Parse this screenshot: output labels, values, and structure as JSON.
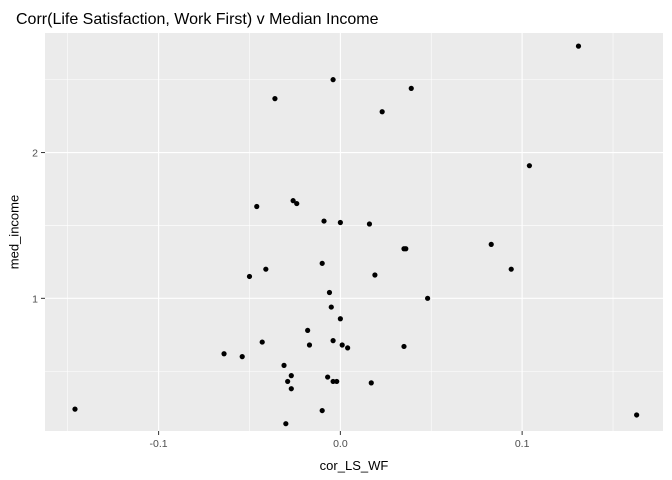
{
  "chart_data": {
    "type": "scatter",
    "title": "Corr(Life Satisfaction, Work First) v Median Income",
    "xlabel": "cor_LS_WF",
    "ylabel": "med_income",
    "xlim": [
      -0.1625,
      0.1775
    ],
    "ylim": [
      0.09,
      2.82
    ],
    "x_ticks": [
      -0.1,
      0.0,
      0.1
    ],
    "x_tick_labels": [
      "-0.1",
      "0.0",
      "0.1"
    ],
    "y_ticks": [
      1,
      2
    ],
    "y_tick_labels": [
      "1",
      "2"
    ],
    "grid": true,
    "points": [
      {
        "x": -0.146,
        "y": 0.24
      },
      {
        "x": -0.064,
        "y": 0.62
      },
      {
        "x": -0.054,
        "y": 0.6
      },
      {
        "x": -0.05,
        "y": 1.15
      },
      {
        "x": -0.046,
        "y": 1.63
      },
      {
        "x": -0.043,
        "y": 0.7
      },
      {
        "x": -0.041,
        "y": 1.2
      },
      {
        "x": -0.036,
        "y": 2.37
      },
      {
        "x": -0.031,
        "y": 0.54
      },
      {
        "x": -0.03,
        "y": 0.14
      },
      {
        "x": -0.029,
        "y": 0.43
      },
      {
        "x": -0.027,
        "y": 0.38
      },
      {
        "x": -0.027,
        "y": 0.47
      },
      {
        "x": -0.026,
        "y": 1.67
      },
      {
        "x": -0.024,
        "y": 1.65
      },
      {
        "x": -0.018,
        "y": 0.78
      },
      {
        "x": -0.017,
        "y": 0.68
      },
      {
        "x": -0.01,
        "y": 0.23
      },
      {
        "x": -0.01,
        "y": 1.24
      },
      {
        "x": -0.009,
        "y": 1.53
      },
      {
        "x": -0.007,
        "y": 0.46
      },
      {
        "x": -0.006,
        "y": 1.04
      },
      {
        "x": -0.005,
        "y": 0.94
      },
      {
        "x": -0.004,
        "y": 0.71
      },
      {
        "x": -0.004,
        "y": 0.43
      },
      {
        "x": -0.004,
        "y": 2.5
      },
      {
        "x": -0.002,
        "y": 0.43
      },
      {
        "x": 0.0,
        "y": 0.86
      },
      {
        "x": 0.0,
        "y": 1.52
      },
      {
        "x": 0.001,
        "y": 0.68
      },
      {
        "x": 0.004,
        "y": 0.66
      },
      {
        "x": 0.016,
        "y": 1.51
      },
      {
        "x": 0.017,
        "y": 0.42
      },
      {
        "x": 0.019,
        "y": 1.16
      },
      {
        "x": 0.023,
        "y": 2.28
      },
      {
        "x": 0.035,
        "y": 0.67
      },
      {
        "x": 0.035,
        "y": 1.34
      },
      {
        "x": 0.036,
        "y": 1.34
      },
      {
        "x": 0.039,
        "y": 2.44
      },
      {
        "x": 0.048,
        "y": 1.0
      },
      {
        "x": 0.083,
        "y": 1.37
      },
      {
        "x": 0.094,
        "y": 1.2
      },
      {
        "x": 0.104,
        "y": 1.91
      },
      {
        "x": 0.131,
        "y": 2.73
      },
      {
        "x": 0.163,
        "y": 0.2
      }
    ]
  },
  "colors": {
    "panel_background": "#ebebeb",
    "grid_major": "#ffffff",
    "point": "#000000",
    "tick_label": "#4d4d4d",
    "axis_tick": "#333333"
  }
}
